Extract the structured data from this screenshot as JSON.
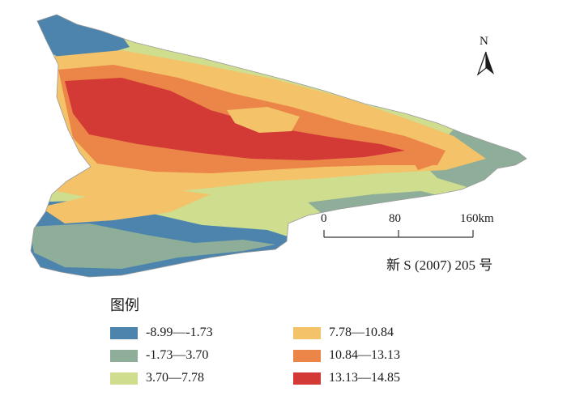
{
  "map": {
    "north_label": "N",
    "north_arrow_icon": "north-arrow-icon",
    "scale_bar": {
      "ticks": [
        "0",
        "80",
        "160km"
      ]
    },
    "map_code": "新 S (2007) 205 号"
  },
  "legend": {
    "title": "图例",
    "classes": [
      {
        "label": "-8.99—-1.73",
        "color": "#4c84ad"
      },
      {
        "label": "-1.73—3.70",
        "color": "#8eae99"
      },
      {
        "label": "3.70—7.78",
        "color": "#cfdd8f"
      },
      {
        "label": "7.78—10.84",
        "color": "#f3c269"
      },
      {
        "label": "10.84—13.13",
        "color": "#ec8548"
      },
      {
        "label": "13.13—14.85",
        "color": "#d33a36"
      }
    ]
  }
}
